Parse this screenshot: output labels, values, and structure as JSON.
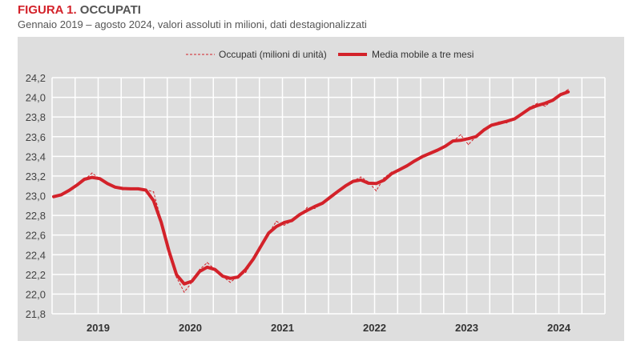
{
  "header": {
    "figure_label": "FIGURA 1.",
    "title": "OCCUPATI",
    "subtitle": "Gennaio 2019 – agosto 2024, valori assoluti in milioni, dati destagionalizzati"
  },
  "chart_data": {
    "type": "line",
    "title": "OCCUPATI",
    "ylim": [
      21.8,
      24.2
    ],
    "yticks": [
      "21,8",
      "22,0",
      "22,2",
      "22,4",
      "22,6",
      "22,8",
      "23,0",
      "23,2",
      "23,4",
      "23,6",
      "23,8",
      "24,0",
      "24,2"
    ],
    "ytick_values": [
      21.8,
      22.0,
      22.2,
      22.4,
      22.6,
      22.8,
      23.0,
      23.2,
      23.4,
      23.6,
      23.8,
      24.0,
      24.2
    ],
    "xticks": [
      "2019",
      "2020",
      "2021",
      "2022",
      "2023",
      "2024"
    ],
    "x_start": "2019-01",
    "x_end": "2024-08",
    "grid": true,
    "legend_position": "top-center",
    "colors": {
      "series": "#d3222a",
      "background": "#dedede",
      "grid": "#ffffff"
    },
    "series": [
      {
        "name": "Occupati (milioni di unità)",
        "style": "dashed",
        "values": [
          22.98,
          23.0,
          23.05,
          23.11,
          23.16,
          23.23,
          23.17,
          23.12,
          23.08,
          23.06,
          23.08,
          23.07,
          23.06,
          23.04,
          22.75,
          22.4,
          22.17,
          22.02,
          22.12,
          22.25,
          22.32,
          22.25,
          22.18,
          22.12,
          22.18,
          22.22,
          22.35,
          22.5,
          22.62,
          22.74,
          22.7,
          22.74,
          22.8,
          22.88,
          22.87,
          22.92,
          22.98,
          23.05,
          23.1,
          23.15,
          23.19,
          23.14,
          23.05,
          23.18,
          23.24,
          23.25,
          23.3,
          23.36,
          23.4,
          23.43,
          23.46,
          23.5,
          23.55,
          23.62,
          23.52,
          23.6,
          23.68,
          23.72,
          23.75,
          23.74,
          23.78,
          23.82,
          23.9,
          23.94,
          23.91,
          23.97,
          24.03,
          24.08
        ]
      },
      {
        "name": "Media mobile a tre mesi",
        "style": "solid",
        "window": 3
      }
    ]
  }
}
